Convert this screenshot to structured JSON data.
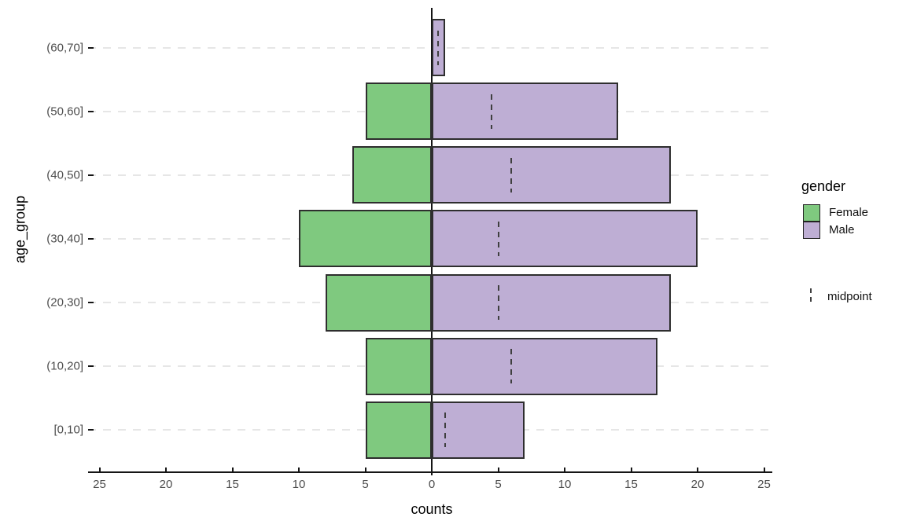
{
  "axes": {
    "x_title": "counts",
    "y_title": "age_group"
  },
  "legend": {
    "gender_title": "gender",
    "female_label": "Female",
    "male_label": "Male",
    "midpoint_label": "midpoint"
  },
  "colors": {
    "female_fill": "#7FC97F",
    "male_fill": "#BEAED4",
    "bar_border": "#2e2e2e",
    "midpoint_dash": "#3f3f3f",
    "gridline": "#e6e6e6",
    "axis_line": "#151515",
    "tick_text": "#4d4d4d",
    "title_text": "#000000",
    "background": "#ffffff"
  },
  "chart_data": {
    "type": "bar",
    "subtype": "population-pyramid",
    "orientation": "horizontal",
    "title": "",
    "xlabel": "counts",
    "ylabel": "age_group",
    "grid": "horizontal dashed",
    "legend_position": "right",
    "categories": [
      "(60,70]",
      "(50,60]",
      "(40,50]",
      "(30,40]",
      "(20,30]",
      "(10,20]",
      "[0,10]"
    ],
    "series": [
      {
        "name": "Female",
        "side": "left",
        "color": "#7FC97F",
        "values": [
          0,
          5,
          6,
          10,
          8,
          5,
          5
        ]
      },
      {
        "name": "Male",
        "side": "right",
        "color": "#BEAED4",
        "values": [
          1,
          14,
          18,
          20,
          18,
          17,
          7
        ]
      }
    ],
    "midpoint_markers": {
      "name": "midpoint",
      "color": "#3f3f3f",
      "values": [
        0.5,
        4.5,
        6,
        5,
        5,
        6,
        1
      ]
    },
    "x_axis": {
      "tick_values": [
        -25,
        -20,
        -15,
        -10,
        -5,
        0,
        5,
        10,
        15,
        20,
        25
      ],
      "tick_labels": [
        "25",
        "20",
        "15",
        "10",
        "5",
        "0",
        "5",
        "10",
        "15",
        "20",
        "25"
      ],
      "range": [
        -26,
        26
      ],
      "zero_line": true
    }
  }
}
